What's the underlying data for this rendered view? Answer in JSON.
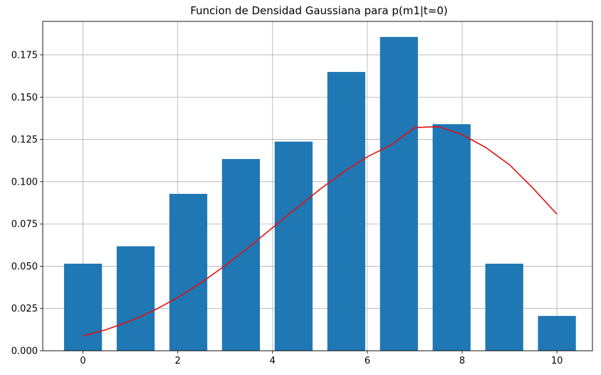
{
  "chart_data": {
    "type": "bar",
    "title": "Funcion de Densidad Gaussiana para p(m1|t=0)",
    "xlabel": "",
    "ylabel": "",
    "xlim": [
      -0.85,
      10.75
    ],
    "ylim": [
      0,
      0.1948
    ],
    "grid": true,
    "x_ticks": [
      0,
      2,
      4,
      6,
      8,
      10
    ],
    "x_tick_labels": [
      "0",
      "2",
      "4",
      "6",
      "8",
      "10"
    ],
    "y_ticks": [
      0.0,
      0.025,
      0.05,
      0.075,
      0.1,
      0.125,
      0.15,
      0.175
    ],
    "y_tick_labels": [
      "0.000",
      "0.025",
      "0.050",
      "0.075",
      "0.100",
      "0.125",
      "0.150",
      "0.175"
    ],
    "bars": {
      "bin_centers": [
        0.0,
        1.111,
        2.222,
        3.333,
        4.444,
        5.556,
        6.667,
        7.778,
        8.889,
        10.0
      ],
      "bin_width": 0.8,
      "values": [
        0.0515,
        0.0618,
        0.0928,
        0.1134,
        0.1237,
        0.1649,
        0.1856,
        0.134,
        0.0515,
        0.0206
      ],
      "color": "#1f77b4"
    },
    "curve": {
      "color": "#e3100f",
      "x": [
        0,
        0.5,
        1,
        1.5,
        2,
        2.5,
        3,
        3.5,
        4,
        4.5,
        5,
        5.5,
        6,
        6.5,
        7,
        7.5,
        8,
        8.5,
        9,
        9.5,
        10
      ],
      "y": [
        0.0088,
        0.0126,
        0.0176,
        0.0239,
        0.0315,
        0.0404,
        0.0504,
        0.0613,
        0.0728,
        0.0843,
        0.0955,
        0.1058,
        0.1147,
        0.1217,
        0.132,
        0.1326,
        0.1278,
        0.1202,
        0.11,
        0.096,
        0.0808
      ]
    }
  }
}
